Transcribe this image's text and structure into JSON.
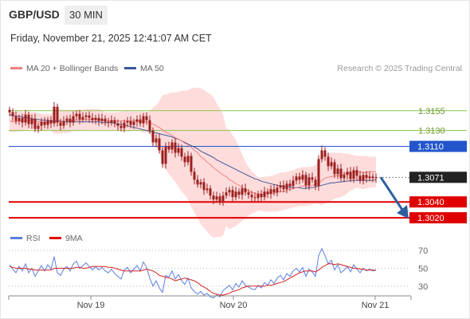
{
  "header": {
    "symbol": "GBP/USD",
    "timeframe": "30 MIN",
    "datetime": "Friday, November 21, 2025 12:41:07 AM CET"
  },
  "legend": {
    "ma20": "MA 20 + Bollinger Bands",
    "ma50": "MA 50",
    "credit": "Research © 2025 Trading Central",
    "rsi": "RSI",
    "rsi_ma": "9MA"
  },
  "colors": {
    "ma20": "#f08080",
    "ma50": "#3b5998",
    "band_fill": "#ffd6d6",
    "resistance": "#8bc34a",
    "pivot": "#2255cc",
    "support": "#e00000",
    "candle": "#9b1f1f",
    "arrow": "#2d5fa0",
    "rsi": "#5a7fe0",
    "rsi_ma": "#d32020"
  },
  "chart_data": [
    {
      "type": "candlestick",
      "title": "GBP/USD 30 MIN",
      "x_tick_labels": [
        "Nov 19",
        "Nov 20",
        "Nov 21"
      ],
      "ylim": [
        1.3003,
        1.3199
      ],
      "price_levels": [
        {
          "label": "1.3155",
          "value": 1.3155,
          "kind": "resistance"
        },
        {
          "label": "1.3130",
          "value": 1.313,
          "kind": "resistance"
        },
        {
          "label": "1.3110",
          "value": 1.311,
          "kind": "pivot"
        },
        {
          "label": "1.3071",
          "value": 1.3071,
          "kind": "last"
        },
        {
          "label": "1.3040",
          "value": 1.304,
          "kind": "support"
        },
        {
          "label": "1.3020",
          "value": 1.302,
          "kind": "support"
        }
      ],
      "close": [
        1.3153,
        1.3148,
        1.3142,
        1.3146,
        1.314,
        1.315,
        1.3138,
        1.3145,
        1.3132,
        1.3136,
        1.3141,
        1.3137,
        1.3143,
        1.3139,
        1.316,
        1.314,
        1.3136,
        1.3142,
        1.3145,
        1.314,
        1.3148,
        1.3151,
        1.3144,
        1.3147,
        1.3149,
        1.3146,
        1.3143,
        1.3146,
        1.3142,
        1.3145,
        1.3141,
        1.314,
        1.3143,
        1.3139,
        1.3136,
        1.3133,
        1.314,
        1.3142,
        1.3137,
        1.3141,
        1.3144,
        1.3139,
        1.3148,
        1.3143,
        1.313,
        1.3115,
        1.312,
        1.3105,
        1.3088,
        1.311,
        1.3106,
        1.3115,
        1.3102,
        1.3108,
        1.3097,
        1.309,
        1.3098,
        1.3078,
        1.3068,
        1.3062,
        1.3065,
        1.3055,
        1.3057,
        1.3048,
        1.3043,
        1.3047,
        1.3041,
        1.3048,
        1.3052,
        1.3055,
        1.3046,
        1.3053,
        1.3049,
        1.3057,
        1.3052,
        1.3049,
        1.3046,
        1.3045,
        1.305,
        1.3046,
        1.3053,
        1.305,
        1.3056,
        1.3052,
        1.3058,
        1.3061,
        1.3056,
        1.3063,
        1.306,
        1.3067,
        1.3072,
        1.3068,
        1.3074,
        1.3061,
        1.3071,
        1.3068,
        1.306,
        1.3094,
        1.3105,
        1.3097,
        1.3085,
        1.309,
        1.3075,
        1.3082,
        1.307,
        1.3074,
        1.3078,
        1.3069,
        1.308,
        1.3073,
        1.3067,
        1.3074,
        1.307,
        1.3072,
        1.307,
        1.3071
      ],
      "ma20": [
        1.3142,
        1.3141,
        1.3141,
        1.3142,
        1.3142,
        1.3142,
        1.3142,
        1.3143,
        1.3142,
        1.3141,
        1.3141,
        1.314,
        1.314,
        1.314,
        1.3141,
        1.3141,
        1.3141,
        1.3141,
        1.3142,
        1.3142,
        1.3143,
        1.3143,
        1.3143,
        1.3144,
        1.3144,
        1.3144,
        1.3144,
        1.3144,
        1.3144,
        1.3143,
        1.3142,
        1.3142,
        1.3142,
        1.3142,
        1.3142,
        1.3142,
        1.3142,
        1.3142,
        1.3142,
        1.3142,
        1.3142,
        1.3141,
        1.3141,
        1.3141,
        1.314,
        1.3138,
        1.3136,
        1.3134,
        1.3131,
        1.3128,
        1.3126,
        1.3124,
        1.3121,
        1.3119,
        1.3117,
        1.3114,
        1.3112,
        1.3109,
        1.3105,
        1.3102,
        1.3097,
        1.3094,
        1.309,
        1.3087,
        1.3083,
        1.308,
        1.3077,
        1.3074,
        1.3072,
        1.3068,
        1.3066,
        1.3063,
        1.3061,
        1.3058,
        1.3056,
        1.3054,
        1.3052,
        1.3051,
        1.305,
        1.305,
        1.305,
        1.305,
        1.3051,
        1.3051,
        1.3052,
        1.3053,
        1.3053,
        1.3055,
        1.3056,
        1.3057,
        1.3058,
        1.3059,
        1.306,
        1.306,
        1.306,
        1.3061,
        1.3062,
        1.3064,
        1.3067,
        1.307,
        1.3071,
        1.3072,
        1.3073,
        1.3073,
        1.3073,
        1.3075,
        1.3076,
        1.3077,
        1.3078,
        1.3078,
        1.3078,
        1.3077,
        1.3077,
        1.3078,
        1.3078,
        1.3078
      ],
      "bb_upper": [
        1.3156,
        1.3154,
        1.3154,
        1.3154,
        1.3154,
        1.3153,
        1.3153,
        1.3153,
        1.3153,
        1.3152,
        1.3151,
        1.3151,
        1.3151,
        1.3151,
        1.3156,
        1.3156,
        1.3156,
        1.3156,
        1.3156,
        1.3156,
        1.3156,
        1.3156,
        1.3156,
        1.3156,
        1.3157,
        1.3157,
        1.3157,
        1.3157,
        1.3157,
        1.3156,
        1.3153,
        1.3153,
        1.3153,
        1.3153,
        1.3153,
        1.3154,
        1.3154,
        1.3155,
        1.3154,
        1.3154,
        1.3154,
        1.3154,
        1.3154,
        1.3153,
        1.3154,
        1.3159,
        1.3162,
        1.3167,
        1.3175,
        1.3175,
        1.3177,
        1.3178,
        1.3178,
        1.3179,
        1.318,
        1.318,
        1.3181,
        1.3183,
        1.3184,
        1.3184,
        1.3183,
        1.3181,
        1.3178,
        1.3176,
        1.3172,
        1.3164,
        1.3158,
        1.315,
        1.3133,
        1.3131,
        1.3124,
        1.3118,
        1.3109,
        1.31,
        1.3091,
        1.3084,
        1.3079,
        1.3075,
        1.3071,
        1.3071,
        1.3072,
        1.3072,
        1.3073,
        1.3074,
        1.3075,
        1.3077,
        1.3077,
        1.3078,
        1.3079,
        1.308,
        1.3082,
        1.3083,
        1.3084,
        1.3084,
        1.3084,
        1.3085,
        1.3086,
        1.3092,
        1.3098,
        1.3101,
        1.3102,
        1.3102,
        1.3102,
        1.3102,
        1.3102,
        1.3101,
        1.3101,
        1.31,
        1.3099,
        1.3098,
        1.3098,
        1.3098,
        1.3098,
        1.3097,
        1.3097,
        1.3097
      ],
      "bb_lower": [
        1.3128,
        1.3128,
        1.3128,
        1.3129,
        1.3129,
        1.3131,
        1.3131,
        1.3132,
        1.3131,
        1.3129,
        1.313,
        1.3129,
        1.313,
        1.313,
        1.3126,
        1.3126,
        1.3126,
        1.3127,
        1.3127,
        1.3128,
        1.313,
        1.3129,
        1.3131,
        1.3131,
        1.313,
        1.3131,
        1.3131,
        1.3131,
        1.3131,
        1.3131,
        1.3131,
        1.3131,
        1.3131,
        1.3131,
        1.3132,
        1.3129,
        1.3129,
        1.3129,
        1.3129,
        1.313,
        1.313,
        1.3129,
        1.3127,
        1.3128,
        1.3125,
        1.3117,
        1.311,
        1.3102,
        1.3087,
        1.3081,
        1.3075,
        1.307,
        1.3065,
        1.3059,
        1.3053,
        1.3049,
        1.3043,
        1.3034,
        1.3027,
        1.302,
        1.3012,
        1.3007,
        1.3003,
        1.2998,
        1.2995,
        1.2996,
        1.2996,
        1.2997,
        1.301,
        1.3005,
        1.3008,
        1.3009,
        1.3013,
        1.3016,
        1.302,
        1.3023,
        1.3025,
        1.3027,
        1.3029,
        1.3029,
        1.3028,
        1.3028,
        1.3028,
        1.3028,
        1.3028,
        1.3029,
        1.303,
        1.3031,
        1.3032,
        1.3033,
        1.3034,
        1.3035,
        1.3035,
        1.3035,
        1.3036,
        1.3037,
        1.3038,
        1.3037,
        1.3036,
        1.3038,
        1.304,
        1.3042,
        1.3044,
        1.3045,
        1.3046,
        1.3048,
        1.3051,
        1.3054,
        1.3056,
        1.3058,
        1.3057,
        1.3056,
        1.3057,
        1.3058,
        1.3058,
        1.3059
      ],
      "ma50": [
        1.315,
        1.3149,
        1.3148,
        1.3148,
        1.3147,
        1.3146,
        1.3146,
        1.3145,
        1.3144,
        1.3144,
        1.3143,
        1.3143,
        1.3143,
        1.3142,
        1.3142,
        1.3142,
        1.3142,
        1.3141,
        1.3141,
        1.3141,
        1.3141,
        1.3141,
        1.3141,
        1.3141,
        1.3141,
        1.3141,
        1.3141,
        1.3141,
        1.3141,
        1.314,
        1.314,
        1.314,
        1.314,
        1.3139,
        1.3138,
        1.3138,
        1.3137,
        1.3136,
        1.3135,
        1.3134,
        1.3133,
        1.3132,
        1.3131,
        1.313,
        1.3129,
        1.3128,
        1.3127,
        1.3126,
        1.3125,
        1.3124,
        1.3123,
        1.3122,
        1.312,
        1.3119,
        1.3117,
        1.3115,
        1.3113,
        1.3111,
        1.3109,
        1.3107,
        1.3104,
        1.3102,
        1.31,
        1.3098,
        1.3096,
        1.3093,
        1.3091,
        1.3089,
        1.3087,
        1.3085,
        1.3083,
        1.3081,
        1.3079,
        1.3077,
        1.3075,
        1.3073,
        1.3071,
        1.3069,
        1.3068,
        1.3066,
        1.3065,
        1.3064,
        1.3063,
        1.3062,
        1.3061,
        1.306,
        1.306,
        1.3059,
        1.3059,
        1.3058,
        1.3058,
        1.3058,
        1.3057,
        1.3057,
        1.3058,
        1.3058,
        1.3059,
        1.306,
        1.3061,
        1.3062,
        1.3063,
        1.3064,
        1.3064,
        1.3065,
        1.3065,
        1.3066,
        1.3066,
        1.3067,
        1.3067,
        1.3067,
        1.3067,
        1.3067,
        1.3067,
        1.3067,
        1.3067,
        1.3068
      ]
    },
    {
      "type": "line",
      "title": "RSI",
      "y_tick_labels": [
        "70",
        "50",
        "30"
      ],
      "ylim": [
        20,
        78
      ],
      "x_tick_labels": [
        "Nov 19",
        "Nov 20",
        "Nov 21"
      ],
      "series": [
        {
          "name": "RSI",
          "values": [
            54,
            49,
            45,
            52,
            47,
            55,
            45,
            50,
            41,
            47,
            53,
            47,
            54,
            49,
            63,
            45,
            42,
            49,
            52,
            47,
            55,
            58,
            50,
            53,
            56,
            52,
            48,
            52,
            48,
            51,
            47,
            45,
            49,
            44,
            41,
            38,
            48,
            51,
            45,
            49,
            53,
            47,
            57,
            51,
            39,
            30,
            36,
            28,
            23,
            42,
            40,
            47,
            38,
            43,
            36,
            32,
            39,
            28,
            24,
            21,
            24,
            20,
            22,
            18,
            17,
            20,
            18,
            25,
            28,
            31,
            26,
            33,
            29,
            36,
            31,
            29,
            27,
            26,
            31,
            28,
            34,
            31,
            37,
            33,
            39,
            42,
            37,
            44,
            41,
            47,
            50,
            46,
            51,
            41,
            49,
            46,
            41,
            64,
            72,
            64,
            55,
            59,
            48,
            54,
            45,
            48,
            52,
            46,
            54,
            49,
            45,
            50,
            47,
            49,
            47,
            48
          ]
        },
        {
          "name": "9MA",
          "values": [
            52,
            51,
            50,
            50,
            50,
            50,
            49,
            49,
            48,
            48,
            48,
            48,
            48,
            48,
            50,
            50,
            50,
            50,
            50,
            50,
            50,
            51,
            51,
            50,
            50,
            51,
            52,
            52,
            52,
            52,
            52,
            51,
            51,
            50,
            49,
            48,
            47,
            47,
            47,
            47,
            47,
            47,
            48,
            49,
            48,
            47,
            45,
            42,
            41,
            40,
            39,
            38,
            36,
            37,
            38,
            39,
            38,
            37,
            36,
            34,
            31,
            29,
            27,
            24,
            22,
            21,
            20,
            20,
            21,
            22,
            24,
            25,
            26,
            28,
            29,
            30,
            30,
            30,
            30,
            30,
            30,
            31,
            31,
            32,
            33,
            34,
            35,
            37,
            39,
            41,
            43,
            45,
            46,
            47,
            47,
            47,
            46,
            48,
            51,
            53,
            55,
            55,
            54,
            55,
            54,
            53,
            52,
            51,
            50,
            50,
            49,
            49,
            48,
            48,
            48,
            48
          ]
        }
      ]
    }
  ]
}
